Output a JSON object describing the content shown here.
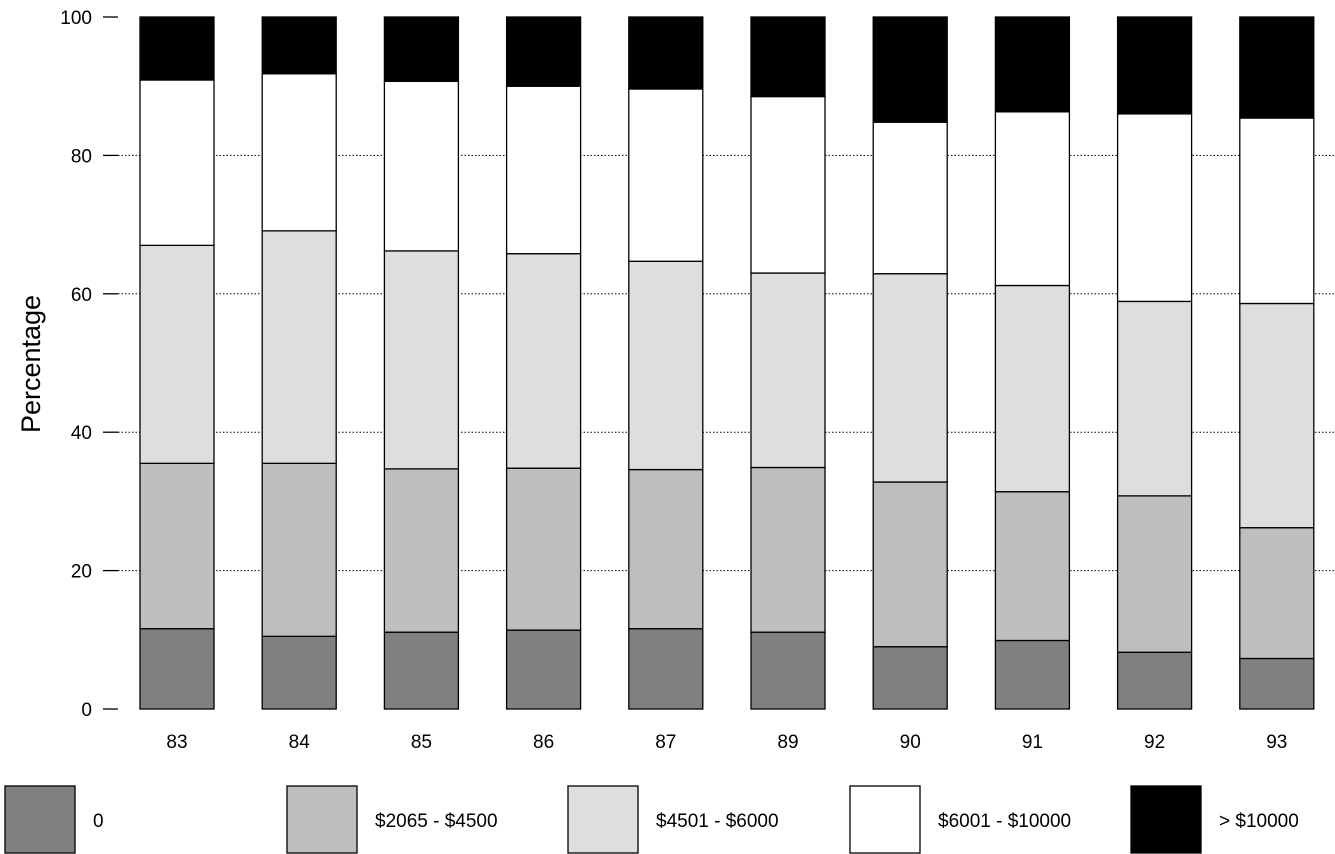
{
  "chart_data": {
    "type": "bar",
    "stacked": true,
    "percent": true,
    "ylabel": "Percentage",
    "xlabel": "",
    "title": "",
    "ylim": [
      0,
      100
    ],
    "yticks": [
      0,
      20,
      40,
      60,
      80,
      100
    ],
    "grid": "horizontal dotted",
    "legend_position": "bottom",
    "categories": [
      "83",
      "84",
      "85",
      "86",
      "87",
      "89",
      "90",
      "91",
      "92",
      "93"
    ],
    "series": [
      {
        "name": "0",
        "color": "#808080",
        "values": [
          11.6,
          10.5,
          11.1,
          11.4,
          11.6,
          11.1,
          9.0,
          9.9,
          8.2,
          7.3
        ]
      },
      {
        "name": "$2065 - $4500",
        "color": "#bebebe",
        "values": [
          23.9,
          25.0,
          23.6,
          23.4,
          23.0,
          23.8,
          23.8,
          21.5,
          22.6,
          18.9
        ]
      },
      {
        "name": "$4501 - $6000",
        "color": "#dedede",
        "values": [
          31.5,
          33.6,
          31.5,
          31.0,
          30.1,
          28.1,
          30.1,
          29.8,
          28.1,
          32.4
        ]
      },
      {
        "name": "$6001 - $10000",
        "color": "#ffffff",
        "values": [
          23.9,
          22.7,
          24.5,
          24.2,
          24.9,
          25.5,
          21.9,
          25.1,
          27.1,
          26.8
        ]
      },
      {
        "name": "> $10000",
        "color": "#000000",
        "values": [
          9.1,
          8.2,
          9.3,
          10.0,
          10.4,
          11.5,
          15.2,
          13.7,
          14.0,
          14.6
        ]
      }
    ]
  }
}
